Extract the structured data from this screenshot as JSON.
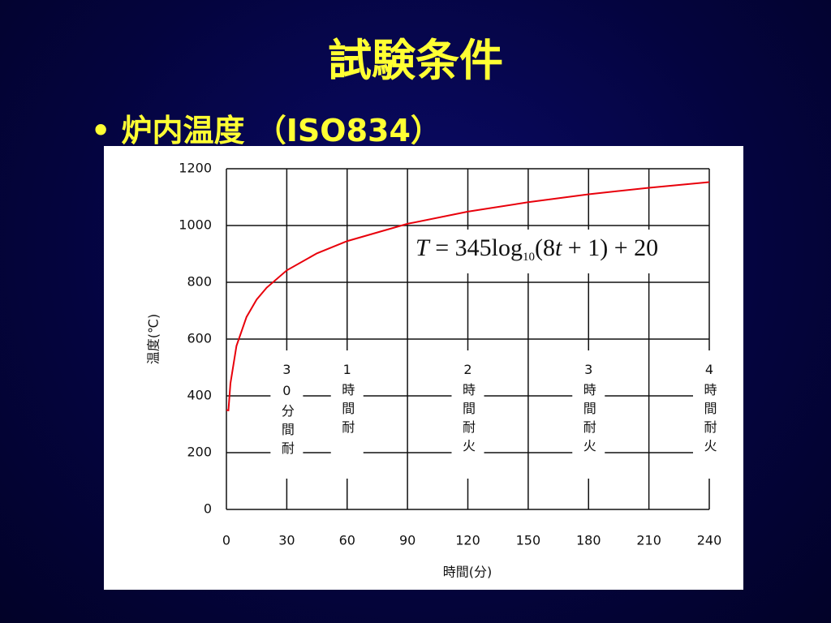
{
  "slide": {
    "title": "試験条件",
    "bullet": "炉内温度 （ISO834）"
  },
  "chart_data": {
    "type": "line",
    "x": [
      0,
      1,
      2,
      5,
      10,
      15,
      20,
      30,
      45,
      60,
      90,
      120,
      150,
      180,
      210,
      240
    ],
    "values": [
      350,
      349,
      444,
      576,
      678,
      739,
      781,
      842,
      902,
      945,
      1006,
      1049,
      1082,
      1110,
      1133,
      1153
    ],
    "color": "#e8000b",
    "xlim": [
      0,
      240
    ],
    "xticks": [
      0,
      30,
      60,
      90,
      120,
      150,
      180,
      210,
      240
    ],
    "ylim": [
      0,
      1200
    ],
    "yticks": [
      0,
      200,
      400,
      600,
      800,
      1000,
      1200
    ],
    "grid": true,
    "xlabel": "時間(分)",
    "ylabel": "温度(℃)",
    "formula": [
      "T",
      " = 345log",
      "10",
      "(8",
      "t",
      " + 1) + 20"
    ],
    "fire_ratings": [
      {
        "x": 30,
        "label": "30分間耐"
      },
      {
        "x": 60,
        "label": "1時間耐"
      },
      {
        "x": 120,
        "label": "2時間耐火"
      },
      {
        "x": 180,
        "label": "3時間耐火"
      },
      {
        "x": 240,
        "label": "4時間耐火"
      }
    ]
  }
}
